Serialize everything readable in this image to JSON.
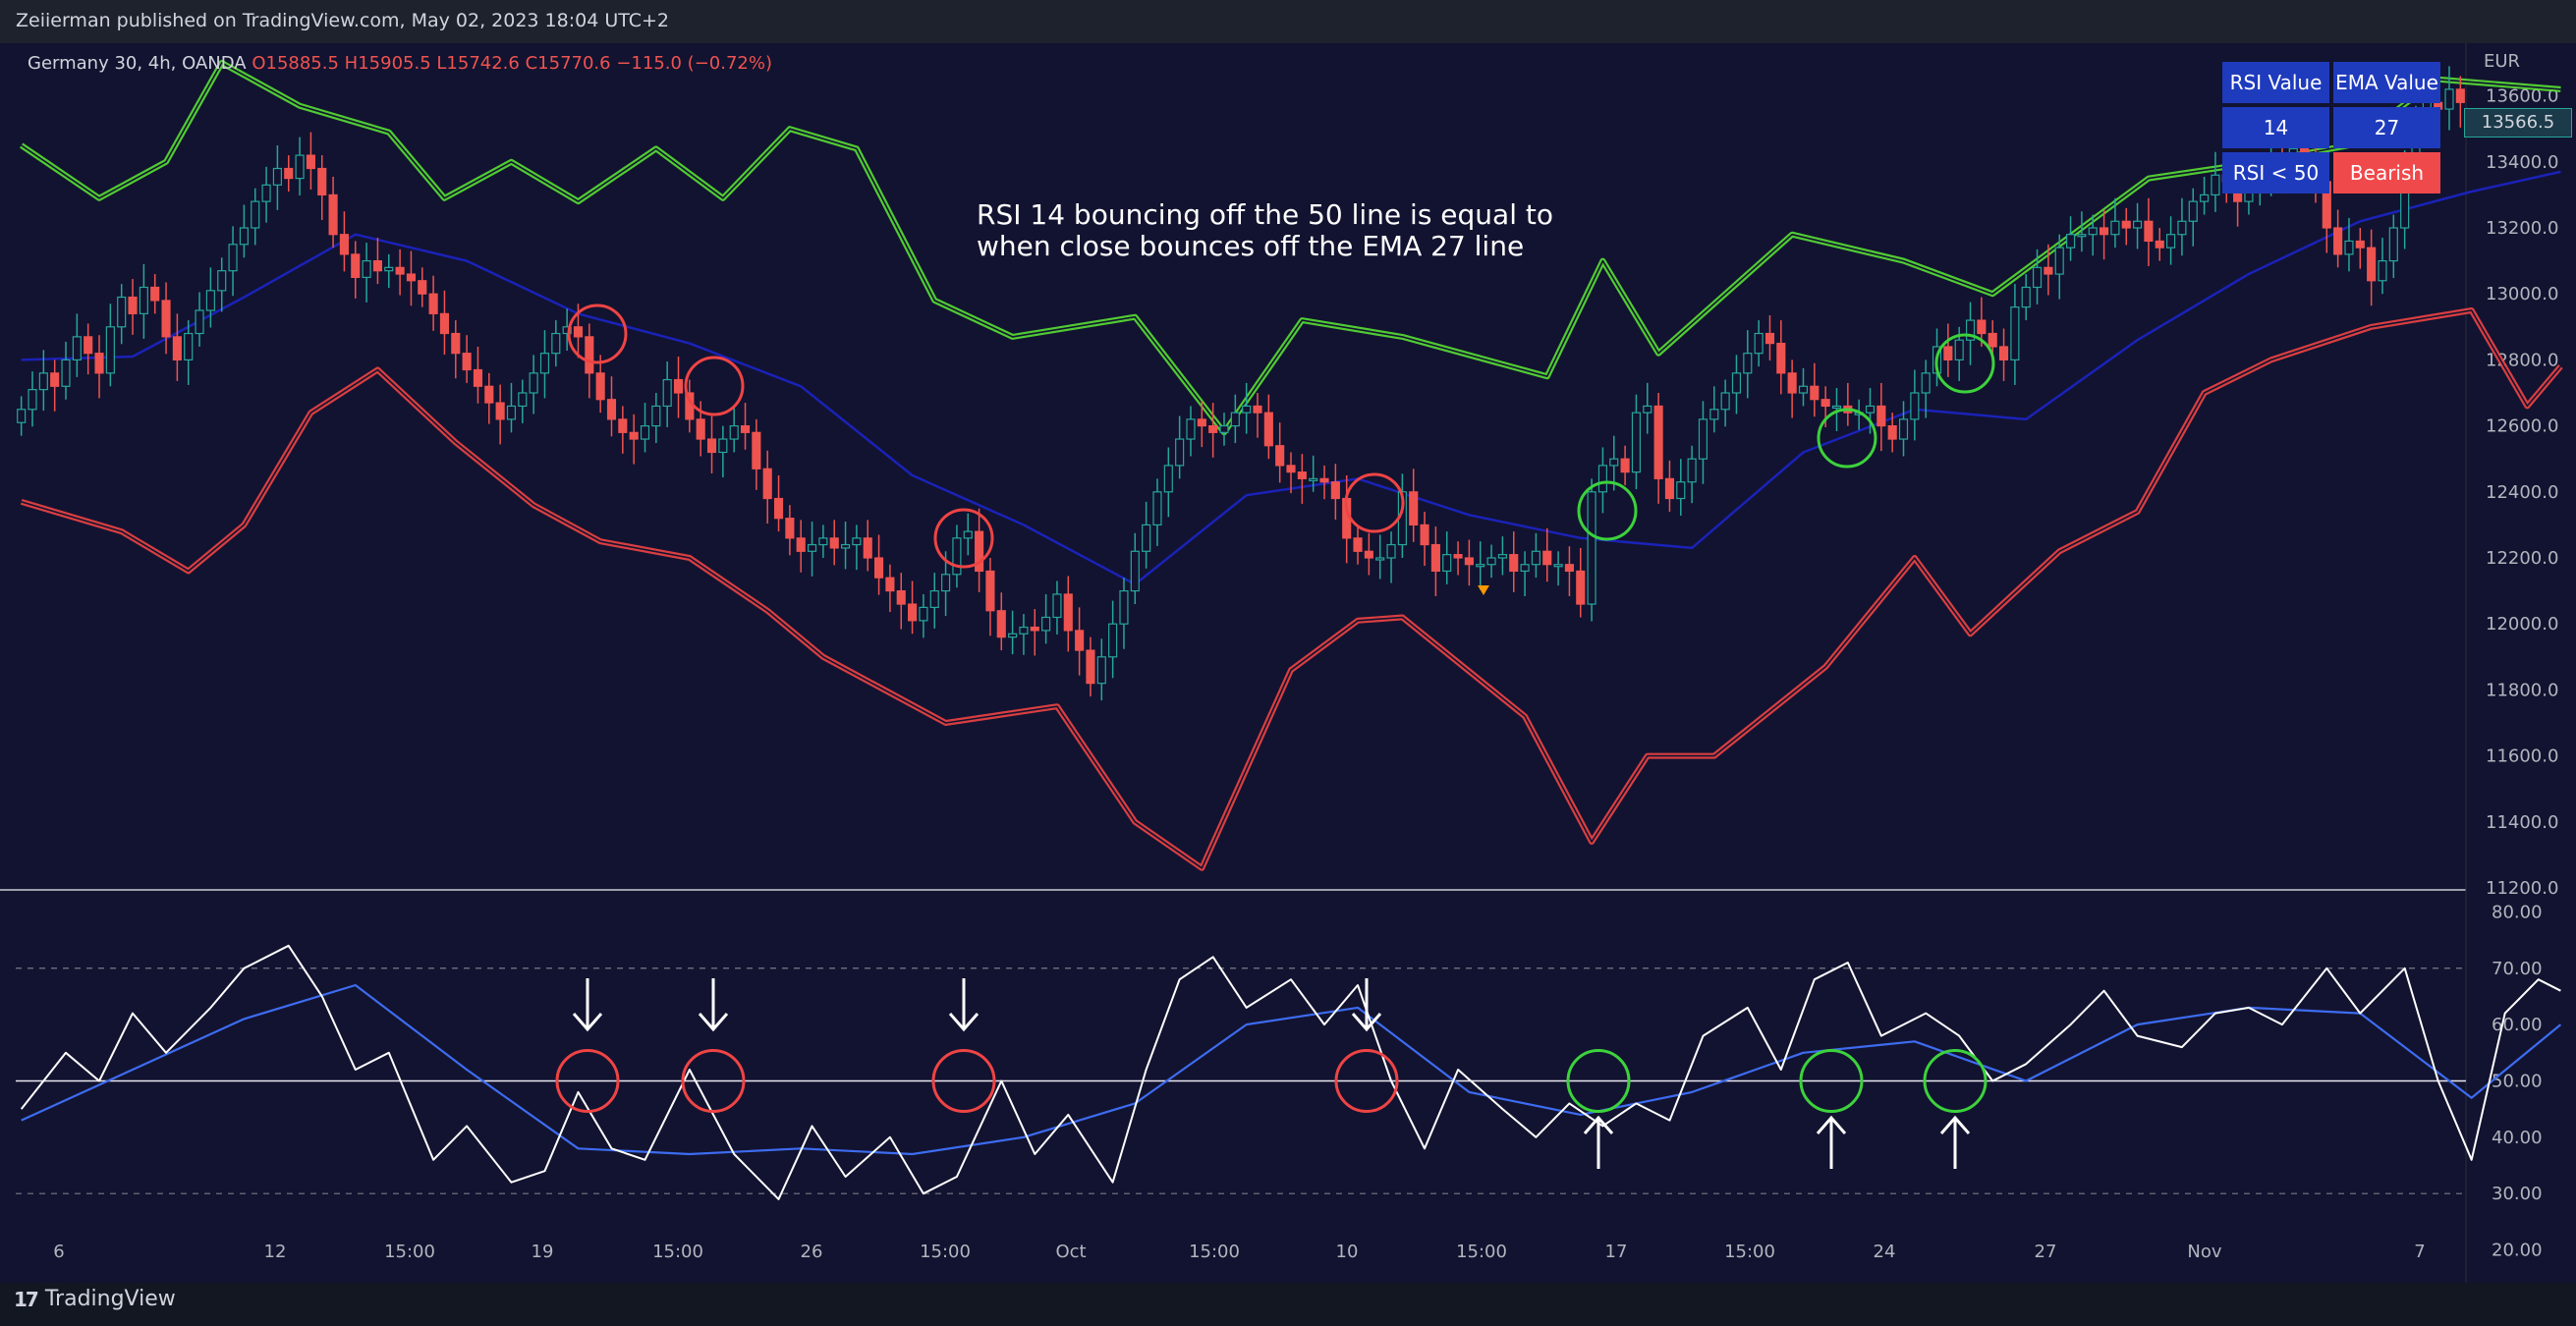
{
  "header": {
    "publisher": "Zeiierman published on TradingView.com, May 02, 2023 18:04 UTC+2"
  },
  "symbol": {
    "name": "Germany 30, 4h, OANDA",
    "open": "O15885.5",
    "high": "H15905.5",
    "low": "L15742.6",
    "close": "C15770.6",
    "change": "−115.0 (−0.72%)"
  },
  "annotation": {
    "line1": "RSI 14 bouncing off the 50 line is equal to",
    "line2": "when close bounces off the EMA 27 line"
  },
  "info_table": {
    "h1": "RSI Value",
    "h2": "EMA Value",
    "v1": "14",
    "v2": "27",
    "cond": "RSI < 50",
    "signal": "Bearish"
  },
  "currency": "EUR",
  "last_price": "13566.5",
  "footer": {
    "brand": "TradingView",
    "brand_icon": "tradingview-logo-icon"
  },
  "colors": {
    "background": "#121330",
    "upper_band": "#58e034",
    "lower_band": "#ef4444",
    "ema": "#1a22b8",
    "candle_up": "#26a69a",
    "candle_down": "#ef5350",
    "rsi": "#ffffff",
    "rsi_ma": "#3d6cf0",
    "marker_bear": "#ef4444",
    "marker_bull": "#3cd23c"
  },
  "chart_data": [
    {
      "type": "line",
      "subtype": "candlestick-with-bands",
      "title": "",
      "xlabel": "",
      "ylabel": "",
      "ylim": [
        11200,
        13700
      ],
      "grid": false,
      "x_tick_labels": [
        "6",
        "12",
        "15:00",
        "19",
        "15:00",
        "26",
        "15:00",
        "Oct",
        "15:00",
        "10",
        "15:00",
        "17",
        "15:00",
        "24",
        "27",
        "Nov",
        "7"
      ],
      "y_ticks": [
        11200,
        11400,
        11600,
        11800,
        12000,
        12200,
        12400,
        12600,
        12800,
        13000,
        13200,
        13400,
        13600
      ],
      "y_tick_labels": [
        "11200.0",
        "11400.0",
        "11600.0",
        "11800.0",
        "12000.0",
        "12200.0",
        "12400.0",
        "12600.0",
        "12800.0",
        "13000.0",
        "13200.0",
        "13400.0",
        "13600.0"
      ],
      "series": [
        {
          "style": "candles",
          "close": [
            12650,
            12710,
            12760,
            12720,
            12800,
            12870,
            12820,
            12760,
            12900,
            12990,
            12940,
            13020,
            12980,
            12870,
            12800,
            12880,
            12950,
            13010,
            13070,
            13150,
            13200,
            13280,
            13330,
            13380,
            13350,
            13420,
            13380,
            13300,
            13180,
            13120,
            13050,
            13100,
            13070,
            13080,
            13060,
            13040,
            13000,
            12940,
            12880,
            12820,
            12770,
            12720,
            12670,
            12620,
            12660,
            12700,
            12760,
            12820,
            12880,
            12900,
            12870,
            12760,
            12680,
            12620,
            12580,
            12560,
            12600,
            12660,
            12740,
            12700,
            12620,
            12560,
            12520,
            12560,
            12600,
            12580,
            12470,
            12380,
            12320,
            12260,
            12220,
            12240,
            12260,
            12230,
            12240,
            12260,
            12200,
            12140,
            12100,
            12060,
            12010,
            12050,
            12100,
            12150,
            12260,
            12280,
            12160,
            12040,
            11960,
            11970,
            11990,
            11980,
            12020,
            12090,
            11980,
            11920,
            11820,
            11900,
            12000,
            12100,
            12220,
            12300,
            12400,
            12480,
            12560,
            12620,
            12600,
            12580,
            12600,
            12640,
            12660,
            12640,
            12540,
            12480,
            12460,
            12440,
            12440,
            12430,
            12380,
            12260,
            12220,
            12200,
            12200,
            12240,
            12400,
            12300,
            12240,
            12160,
            12210,
            12200,
            12180,
            12180,
            12200,
            12210,
            12160,
            12180,
            12220,
            12180,
            12180,
            12160,
            12060,
            12400,
            12480,
            12500,
            12460,
            12640,
            12660,
            12440,
            12380,
            12430,
            12500,
            12620,
            12650,
            12700,
            12760,
            12820,
            12880,
            12850,
            12760,
            12700,
            12720,
            12680,
            12660,
            12660,
            12640,
            12640,
            12660,
            12600,
            12560,
            12620,
            12700,
            12760,
            12840,
            12800,
            12860,
            12920,
            12880,
            12840,
            12800,
            12960,
            13020,
            13080,
            13060,
            13140,
            13180,
            13180,
            13200,
            13180,
            13220,
            13200,
            13220,
            13160,
            13140,
            13180,
            13220,
            13280,
            13300,
            13360,
            13340,
            13280,
            13320,
            13360,
            13400,
            13380,
            13440,
            13420,
            13340,
            13200,
            13120,
            13160,
            13140,
            13040,
            13100,
            13200,
            13380,
            13500,
            13580,
            13560,
            13620,
            13580
          ]
        },
        {
          "name": "",
          "style": "ema",
          "x": [
            0,
            10,
            20,
            30,
            40,
            50,
            60,
            70,
            80,
            90,
            100,
            110,
            120,
            130,
            140,
            150,
            160,
            170,
            180,
            190,
            200,
            210,
            220,
            228
          ],
          "values": [
            12800,
            12810,
            12990,
            13180,
            13100,
            12940,
            12850,
            12720,
            12450,
            12300,
            12120,
            12390,
            12440,
            12330,
            12260,
            12230,
            12520,
            12650,
            12620,
            12860,
            13060,
            13220,
            13310,
            13370
          ]
        },
        {
          "name": "",
          "style": "upper-band",
          "x": [
            0,
            7,
            13,
            18,
            25,
            33,
            38,
            44,
            50,
            57,
            63,
            69,
            75,
            82,
            89,
            100,
            108,
            115,
            124,
            137,
            142,
            147,
            153,
            159,
            169,
            177,
            191,
            201,
            209,
            217,
            228
          ],
          "values": [
            13450,
            13290,
            13400,
            13700,
            13570,
            13490,
            13290,
            13400,
            13280,
            13440,
            13290,
            13500,
            13440,
            12980,
            12870,
            12930,
            12580,
            12920,
            12870,
            12750,
            13100,
            12820,
            13000,
            13180,
            13100,
            13000,
            13350,
            13400,
            13450,
            13650,
            13620
          ]
        },
        {
          "name": "",
          "style": "lower-band",
          "x": [
            0,
            9,
            15,
            20,
            26,
            32,
            39,
            46,
            52,
            60,
            67,
            72,
            83,
            93,
            100,
            106,
            114,
            120,
            124,
            135,
            141,
            146,
            152,
            162,
            170,
            175,
            183,
            190,
            196,
            202,
            211,
            220,
            225,
            228
          ],
          "values": [
            12370,
            12280,
            12160,
            12300,
            12640,
            12770,
            12550,
            12360,
            12250,
            12200,
            12040,
            11900,
            11700,
            11750,
            11400,
            11260,
            11860,
            12010,
            12020,
            11720,
            11340,
            11600,
            11600,
            11870,
            12200,
            11970,
            12220,
            12340,
            12700,
            12800,
            12900,
            12950,
            12660,
            12780
          ]
        }
      ]
    },
    {
      "type": "line",
      "subtype": "rsi-oscillator",
      "title": "",
      "xlabel": "",
      "ylabel": "",
      "ylim": [
        18,
        86
      ],
      "grid": false,
      "y_ticks": [
        20,
        30,
        40,
        50,
        60,
        70,
        80
      ],
      "y_tick_labels": [
        "20.00",
        "30.00",
        "40.00",
        "50.00",
        "60.00",
        "70.00",
        "80.00"
      ],
      "levels": {
        "upper": 70,
        "middle": 50,
        "lower": 30
      },
      "series": [
        {
          "name": "",
          "style": "rsi",
          "x": [
            0,
            4,
            7,
            10,
            13,
            17,
            20,
            24,
            27,
            30,
            33,
            37,
            40,
            44,
            47,
            50,
            53,
            56,
            60,
            64,
            68,
            71,
            74,
            78,
            81,
            84,
            88,
            91,
            94,
            98,
            101,
            104,
            107,
            110,
            114,
            117,
            120,
            123,
            126,
            129,
            133,
            136,
            139,
            142,
            145,
            148,
            151,
            155,
            158,
            161,
            164,
            167,
            171,
            174,
            177,
            180,
            184,
            187,
            190,
            194,
            197,
            200,
            203,
            207,
            210,
            214,
            217,
            220,
            223,
            226,
            228
          ],
          "values": [
            45,
            55,
            50,
            62,
            55,
            63,
            70,
            74,
            65,
            52,
            55,
            36,
            42,
            32,
            34,
            48,
            38,
            36,
            52,
            37,
            29,
            42,
            33,
            40,
            30,
            33,
            50,
            37,
            44,
            32,
            52,
            68,
            72,
            63,
            68,
            60,
            67,
            50,
            38,
            52,
            45,
            40,
            46,
            42,
            46,
            43,
            58,
            63,
            52,
            68,
            71,
            58,
            62,
            58,
            50,
            53,
            60,
            66,
            58,
            56,
            62,
            63,
            60,
            70,
            62,
            70,
            50,
            36,
            62,
            68,
            66
          ]
        },
        {
          "name": "",
          "style": "rsi-ma",
          "x": [
            0,
            10,
            20,
            30,
            40,
            50,
            60,
            70,
            80,
            90,
            100,
            110,
            120,
            130,
            140,
            150,
            160,
            170,
            180,
            190,
            200,
            210,
            220,
            228
          ],
          "values": [
            43,
            52,
            61,
            67,
            52,
            38,
            37,
            38,
            37,
            40,
            46,
            60,
            63,
            48,
            44,
            48,
            55,
            57,
            50,
            60,
            63,
            62,
            47,
            60
          ]
        }
      ]
    }
  ]
}
